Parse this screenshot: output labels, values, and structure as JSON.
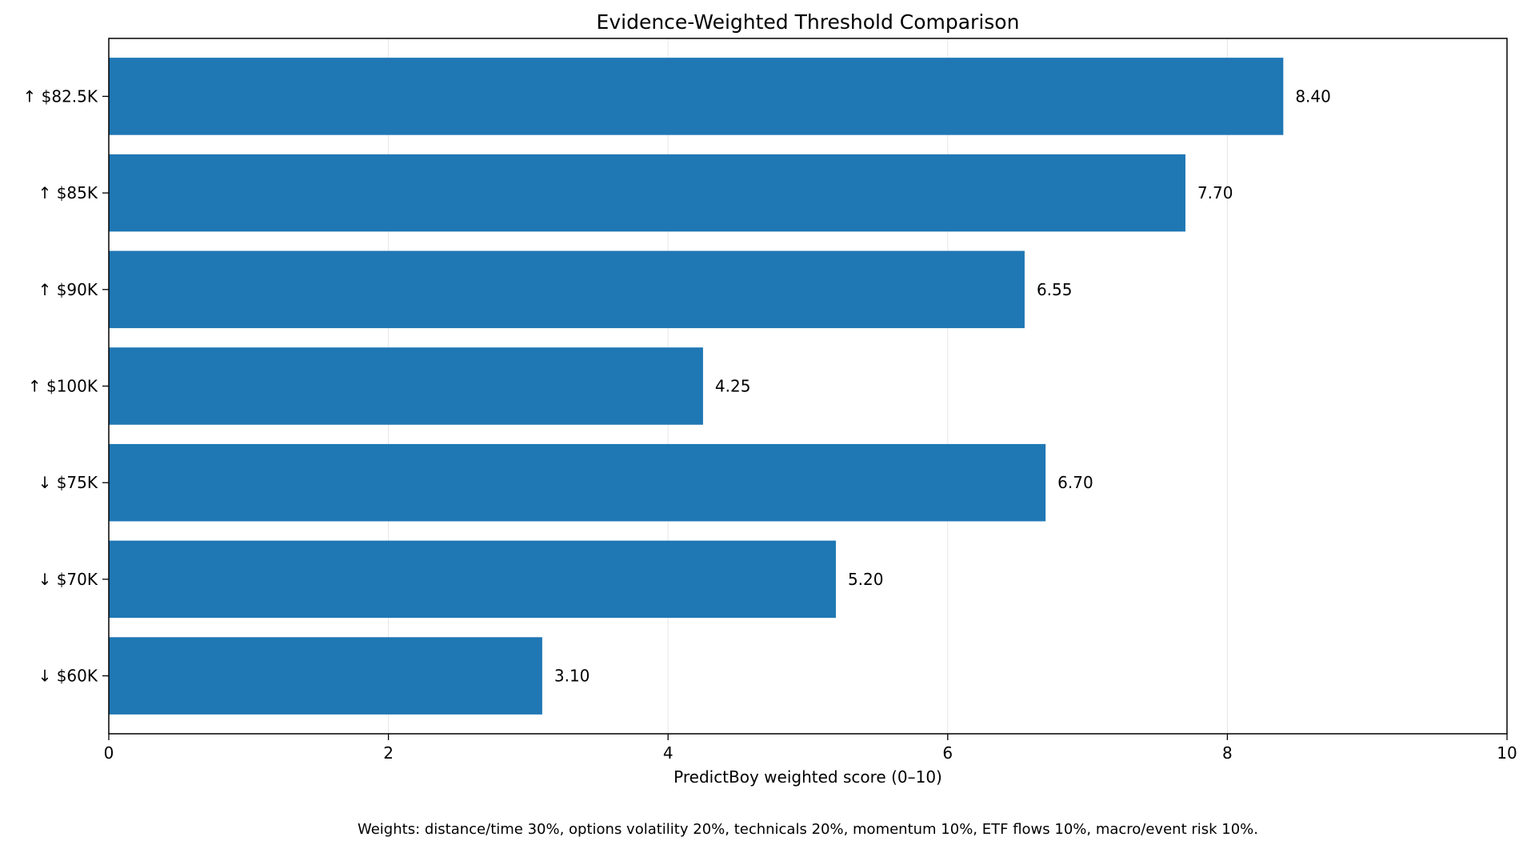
{
  "chart_data": {
    "type": "bar",
    "orientation": "horizontal",
    "title": "Evidence-Weighted Threshold Comparison",
    "xlabel": "PredictBoy weighted score (0–10)",
    "ylabel": "",
    "xlim": [
      0,
      10
    ],
    "xticks": [
      "0",
      "2",
      "4",
      "6",
      "8",
      "10"
    ],
    "categories": [
      "↑ $82.5K",
      "↑ $85K",
      "↑ $90K",
      "↑ $100K",
      "↓ $75K",
      "↓ $70K",
      "↓ $60K"
    ],
    "values": [
      8.4,
      7.7,
      6.55,
      4.25,
      6.7,
      5.2,
      3.1
    ],
    "value_labels": [
      "8.40",
      "7.70",
      "6.55",
      "4.25",
      "6.70",
      "5.20",
      "3.10"
    ],
    "bar_color": "#1f77b4",
    "grid": "x",
    "footnote": "Weights: distance/time 30%, options volatility 20%, technicals 20%, momentum 10%, ETF flows 10%, macro/event risk 10%."
  }
}
